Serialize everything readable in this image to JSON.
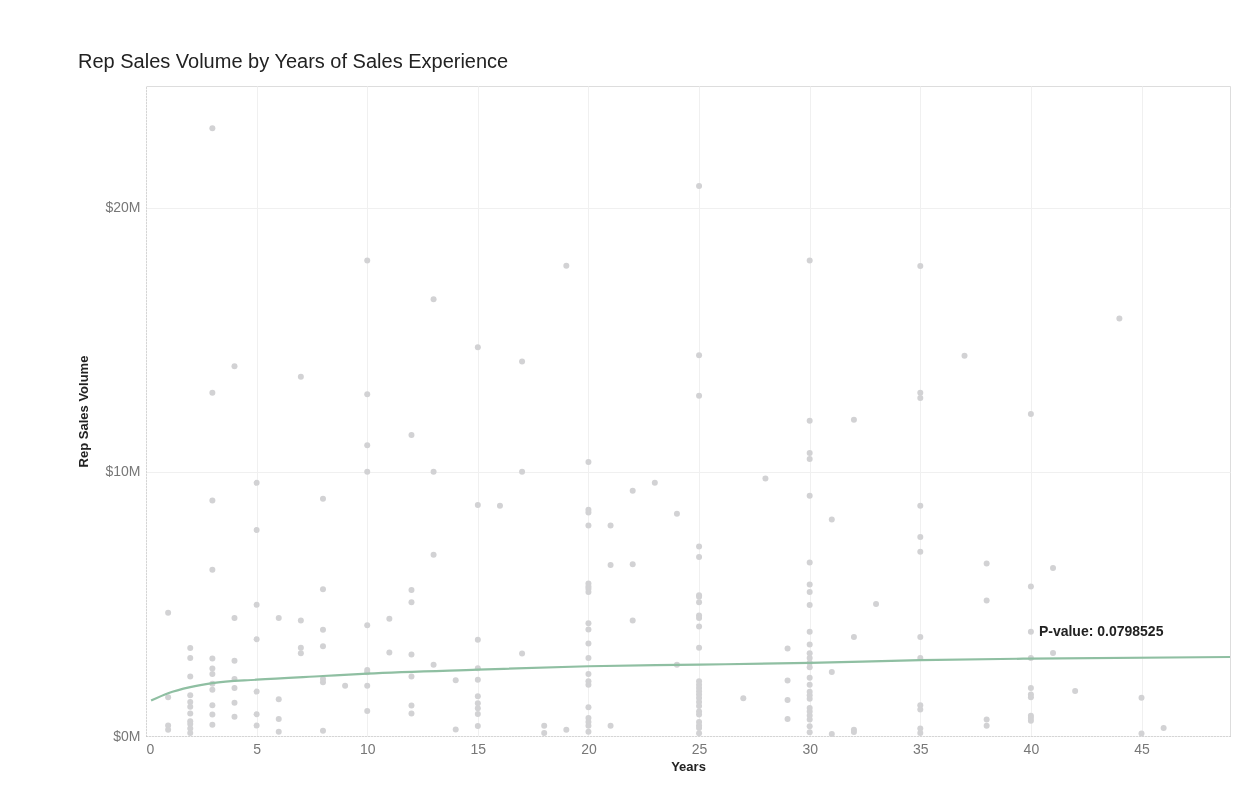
{
  "chart_data": {
    "type": "scatter",
    "title": "Rep Sales Volume by Years of Sales Experience",
    "xlabel": "Years",
    "ylabel": "Rep Sales Volume",
    "xlim": [
      0,
      49
    ],
    "ylim": [
      0,
      24.6
    ],
    "xticks": [
      0,
      5,
      10,
      15,
      20,
      25,
      30,
      35,
      40,
      45
    ],
    "yticks": [
      {
        "value": 0,
        "label": "$0M"
      },
      {
        "value": 10,
        "label": "$10M"
      },
      {
        "value": 20,
        "label": "$20M"
      }
    ],
    "grid": true,
    "annotations": [
      {
        "text": "P-value:  0.0798525",
        "x": 40,
        "y": 3.95
      }
    ],
    "series": [
      {
        "marker": "circle",
        "color": "#d2d2d4",
        "x": [
          1,
          1,
          1,
          1,
          2,
          2,
          2,
          2,
          2,
          2,
          2,
          2,
          2,
          2,
          2,
          3,
          3,
          3,
          3,
          3,
          3,
          3,
          3,
          3,
          3,
          3,
          3,
          4,
          4,
          4,
          4,
          4,
          4,
          4,
          5,
          5,
          5,
          5,
          5,
          5,
          5,
          6,
          6,
          6,
          6,
          7,
          7,
          7,
          7,
          8,
          8,
          8,
          8,
          8,
          8,
          8,
          9,
          10,
          10,
          10,
          10,
          10,
          10,
          10,
          10,
          10,
          11,
          11,
          12,
          12,
          12,
          12,
          12,
          12,
          12,
          13,
          13,
          13,
          13,
          14,
          14,
          15,
          15,
          15,
          15,
          15,
          15,
          15,
          15,
          15,
          15,
          16,
          17,
          17,
          17,
          18,
          18,
          19,
          19,
          20,
          20,
          20,
          20,
          20,
          20,
          20,
          20,
          20,
          20,
          20,
          20,
          20,
          20,
          20,
          20,
          20,
          20,
          20,
          20,
          21,
          21,
          21,
          22,
          22,
          22,
          23,
          24,
          24,
          25,
          25,
          25,
          25,
          25,
          25,
          25,
          25,
          25,
          25,
          25,
          25,
          25,
          25,
          25,
          25,
          25,
          25,
          25,
          25,
          25,
          25,
          25,
          25,
          25,
          25,
          27,
          28,
          29,
          29,
          29,
          29,
          30,
          30,
          30,
          30,
          30,
          30,
          30,
          30,
          30,
          30,
          30,
          30,
          30,
          30,
          30,
          30,
          30,
          30,
          30,
          30,
          30,
          30,
          30,
          30,
          30,
          30,
          31,
          31,
          31,
          32,
          32,
          32,
          32,
          33,
          35,
          35,
          35,
          35,
          35,
          35,
          35,
          35,
          35,
          35,
          35,
          35,
          37,
          38,
          38,
          38,
          38,
          40,
          40,
          40,
          40,
          40,
          40,
          40,
          40,
          40,
          40,
          41,
          41,
          42,
          44,
          45,
          45,
          46
        ],
        "values": [
          4.66,
          1.47,
          0.4,
          0.24,
          3.33,
          2.95,
          2.25,
          1.54,
          1.29,
          1.11,
          0.85,
          0.56,
          0.45,
          0.28,
          0.11,
          23.0,
          12.99,
          8.91,
          6.29,
          2.93,
          2.55,
          2.35,
          1.98,
          1.75,
          1.16,
          0.81,
          0.43,
          13.99,
          4.47,
          2.85,
          2.16,
          1.82,
          1.26,
          0.73,
          9.58,
          7.8,
          4.97,
          3.66,
          1.68,
          0.82,
          0.4,
          4.47,
          1.39,
          0.64,
          0.16,
          13.6,
          4.37,
          3.34,
          3.13,
          8.98,
          5.55,
          4.02,
          3.4,
          2.16,
          2.03,
          0.2,
          1.9,
          18.0,
          12.93,
          11.0,
          10.0,
          4.19,
          2.5,
          2.41,
          1.9,
          0.95,
          4.44,
          3.16,
          11.39,
          5.53,
          5.06,
          3.08,
          2.25,
          1.15,
          0.85,
          16.53,
          10.0,
          6.86,
          2.7,
          2.11,
          0.25,
          14.71,
          8.74,
          3.64,
          2.56,
          2.13,
          1.5,
          1.24,
          1.05,
          0.83,
          0.38,
          8.71,
          14.17,
          10.0,
          3.12,
          0.39,
          0.11,
          17.8,
          0.24,
          10.37,
          8.56,
          8.46,
          7.97,
          5.77,
          5.66,
          5.57,
          5.45,
          4.27,
          4.03,
          3.5,
          2.95,
          2.35,
          2.07,
          1.94,
          1.09,
          0.68,
          0.53,
          0.39,
          0.16,
          7.97,
          6.47,
          0.39,
          9.28,
          6.5,
          4.37,
          9.58,
          8.41,
          2.7,
          20.82,
          14.41,
          12.88,
          7.17,
          6.77,
          5.33,
          5.27,
          5.06,
          4.56,
          4.47,
          4.14,
          3.34,
          2.07,
          1.94,
          1.82,
          1.69,
          1.57,
          1.44,
          1.29,
          1.14,
          0.93,
          0.81,
          0.53,
          0.4,
          0.3,
          0.1,
          1.43,
          9.75,
          3.31,
          2.1,
          1.36,
          0.64,
          18.0,
          11.93,
          10.71,
          10.48,
          9.09,
          6.57,
          5.73,
          5.45,
          4.96,
          3.95,
          3.46,
          3.13,
          2.95,
          2.77,
          2.6,
          2.2,
          1.94,
          1.67,
          1.54,
          1.41,
          1.06,
          0.93,
          0.78,
          0.62,
          0.37,
          0.14,
          8.19,
          2.42,
          0.08,
          11.97,
          3.75,
          0.24,
          0.15,
          5.0,
          17.79,
          12.99,
          12.79,
          8.71,
          7.53,
          6.97,
          3.75,
          2.95,
          1.16,
          1.0,
          0.28,
          0.11,
          14.39,
          6.53,
          5.13,
          0.62,
          0.39,
          12.19,
          5.66,
          3.95,
          2.95,
          1.82,
          1.57,
          1.47,
          0.77,
          0.68,
          0.58,
          6.36,
          3.14,
          1.7,
          15.8,
          1.45,
          0.09,
          0.3
        ]
      },
      {
        "type": "line",
        "color": "#8fbfa2",
        "x": [
          0.23,
          1,
          2,
          3,
          5,
          8,
          10,
          15,
          20,
          25,
          30,
          35,
          40,
          49
        ],
        "values": [
          1.34,
          1.62,
          1.85,
          2.0,
          2.13,
          2.27,
          2.36,
          2.51,
          2.64,
          2.7,
          2.77,
          2.87,
          2.93,
          2.99
        ]
      }
    ]
  }
}
